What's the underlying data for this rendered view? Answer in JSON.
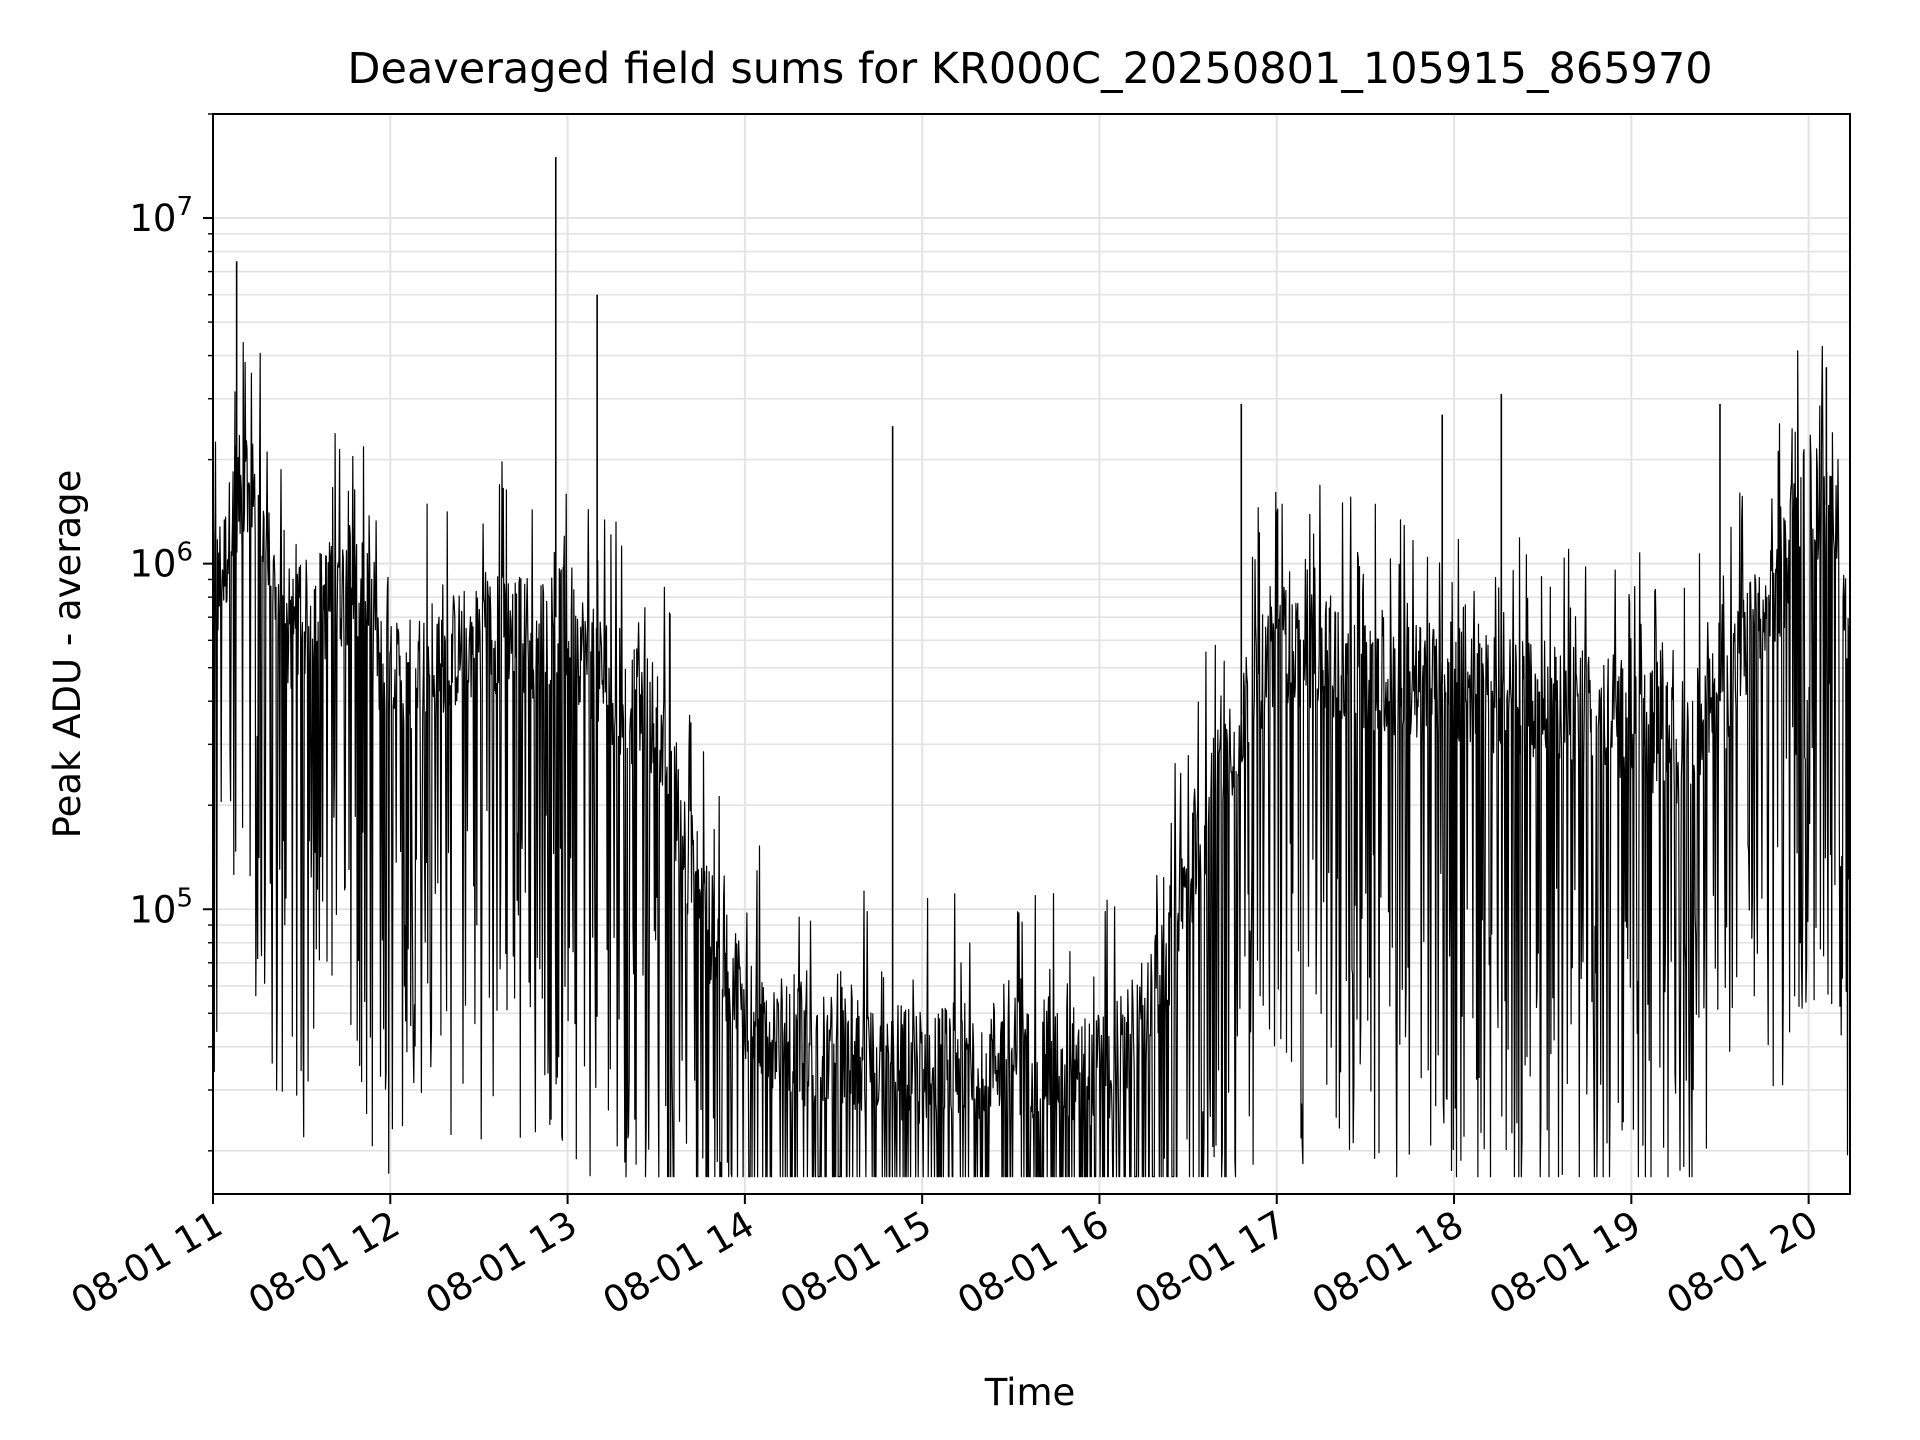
{
  "chart_data": {
    "type": "line",
    "title": "Deaveraged field sums for KR000C_20250801_105915_865970",
    "xlabel": "Time",
    "ylabel": "Peak ADU - average",
    "y_scale": "log",
    "grid": true,
    "legend": "none",
    "line_color": "#000000",
    "grid_color": "#e3e3e3",
    "x_range": [
      "2025-08-01 11:00",
      "2025-08-01 20:14"
    ],
    "ylim": [
      15000,
      20000000
    ],
    "x_ticks": [
      {
        "label": "08-01 11",
        "value": "2025-08-01 11:00"
      },
      {
        "label": "08-01 12",
        "value": "2025-08-01 12:00"
      },
      {
        "label": "08-01 13",
        "value": "2025-08-01 13:00"
      },
      {
        "label": "08-01 14",
        "value": "2025-08-01 14:00"
      },
      {
        "label": "08-01 15",
        "value": "2025-08-01 15:00"
      },
      {
        "label": "08-01 16",
        "value": "2025-08-01 16:00"
      },
      {
        "label": "08-01 17",
        "value": "2025-08-01 17:00"
      },
      {
        "label": "08-01 18",
        "value": "2025-08-01 18:00"
      },
      {
        "label": "08-01 19",
        "value": "2025-08-01 19:00"
      },
      {
        "label": "08-01 20",
        "value": "2025-08-01 20:00"
      }
    ],
    "y_ticks": [
      {
        "base": "10",
        "exp": "5",
        "value": 100000
      },
      {
        "base": "10",
        "exp": "6",
        "value": 1000000
      },
      {
        "base": "10",
        "exp": "7",
        "value": 10000000
      }
    ],
    "series": [
      {
        "x": [
          "2025-08-01 11:00",
          "2025-08-01 11:04",
          "2025-08-01 11:08",
          "2025-08-01 11:12",
          "2025-08-01 11:16",
          "2025-08-01 11:20",
          "2025-08-01 11:24",
          "2025-08-01 11:28",
          "2025-08-01 11:32",
          "2025-08-01 11:36",
          "2025-08-01 11:40",
          "2025-08-01 11:44",
          "2025-08-01 11:48",
          "2025-08-01 11:52",
          "2025-08-01 11:56",
          "2025-08-01 12:00",
          "2025-08-01 12:10",
          "2025-08-01 12:20",
          "2025-08-01 12:30",
          "2025-08-01 12:40",
          "2025-08-01 12:50",
          "2025-08-01 12:56",
          "2025-08-01 13:00",
          "2025-08-01 13:06",
          "2025-08-01 13:10",
          "2025-08-01 13:20",
          "2025-08-01 13:30",
          "2025-08-01 13:40",
          "2025-08-01 13:50",
          "2025-08-01 14:00",
          "2025-08-01 14:10",
          "2025-08-01 14:20",
          "2025-08-01 14:30",
          "2025-08-01 14:40",
          "2025-08-01 14:50",
          "2025-08-01 15:00",
          "2025-08-01 15:10",
          "2025-08-01 15:20",
          "2025-08-01 15:30",
          "2025-08-01 15:40",
          "2025-08-01 15:50",
          "2025-08-01 16:00",
          "2025-08-01 16:10",
          "2025-08-01 16:20",
          "2025-08-01 16:30",
          "2025-08-01 16:40",
          "2025-08-01 16:50",
          "2025-08-01 17:00",
          "2025-08-01 17:15",
          "2025-08-01 17:30",
          "2025-08-01 17:45",
          "2025-08-01 18:00",
          "2025-08-01 18:15",
          "2025-08-01 18:30",
          "2025-08-01 18:45",
          "2025-08-01 19:00",
          "2025-08-01 19:15",
          "2025-08-01 19:30",
          "2025-08-01 19:40",
          "2025-08-01 19:50",
          "2025-08-01 19:56",
          "2025-08-01 20:00",
          "2025-08-01 20:05",
          "2025-08-01 20:10",
          "2025-08-01 20:14"
        ],
        "y": [
          800000,
          1000000,
          1600000,
          1500000,
          1300000,
          900000,
          600000,
          650000,
          700000,
          750000,
          800000,
          850000,
          900000,
          700000,
          500000,
          450000,
          500000,
          550000,
          600000,
          650000,
          600000,
          700000,
          650000,
          550000,
          500000,
          400000,
          350000,
          150000,
          80000,
          55000,
          45000,
          40000,
          38000,
          37000,
          36000,
          35000,
          36000,
          37000,
          38000,
          37000,
          36000,
          34000,
          40000,
          60000,
          120000,
          250000,
          400000,
          600000,
          550000,
          500000,
          450000,
          450000,
          420000,
          400000,
          380000,
          350000,
          300000,
          400000,
          600000,
          800000,
          1400000,
          1500000,
          1500000,
          1400000,
          450000
        ]
      }
    ],
    "spikes": [
      {
        "x": "2025-08-01 11:08",
        "y": 7500000
      },
      {
        "x": "2025-08-01 12:56",
        "y": 15000000
      },
      {
        "x": "2025-08-01 13:10",
        "y": 6000000
      },
      {
        "x": "2025-08-01 14:50",
        "y": 2500000
      },
      {
        "x": "2025-08-01 16:48",
        "y": 2900000
      },
      {
        "x": "2025-08-01 17:56",
        "y": 2700000
      },
      {
        "x": "2025-08-01 18:16",
        "y": 3100000
      },
      {
        "x": "2025-08-01 19:30",
        "y": 2900000
      },
      {
        "x": "2025-08-01 20:06",
        "y": 3700000
      }
    ]
  }
}
